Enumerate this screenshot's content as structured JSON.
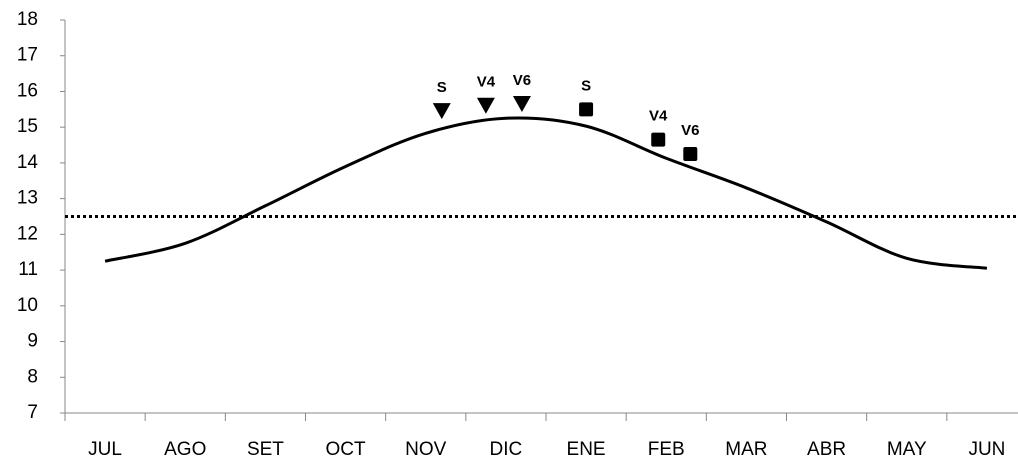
{
  "chart_data": {
    "type": "line",
    "categories": [
      "JUL",
      "AGO",
      "SET",
      "OCT",
      "NOV",
      "DIC",
      "ENE",
      "FEB",
      "MAR",
      "ABR",
      "MAY",
      "JUN"
    ],
    "values": [
      11.25,
      11.75,
      12.8,
      13.9,
      14.83,
      15.25,
      15.03,
      14.13,
      13.3,
      12.35,
      11.33,
      11.05
    ],
    "color": "#000000",
    "ylim": [
      7,
      18
    ],
    "yticks": [
      7,
      8,
      9,
      10,
      11,
      12,
      13,
      14,
      15,
      16,
      17,
      18
    ],
    "reference_line": 12.5,
    "markers": [
      {
        "shape": "triangle",
        "x": [
          4.2,
          4.75,
          5.2
        ],
        "values": [
          15.45,
          15.6,
          15.65
        ],
        "labels": [
          "S",
          "V4",
          "V6"
        ]
      },
      {
        "shape": "square",
        "x": [
          6.0,
          6.9,
          7.3
        ],
        "values": [
          15.5,
          14.65,
          14.25
        ],
        "labels": [
          "S",
          "V4",
          "V6"
        ]
      }
    ]
  }
}
